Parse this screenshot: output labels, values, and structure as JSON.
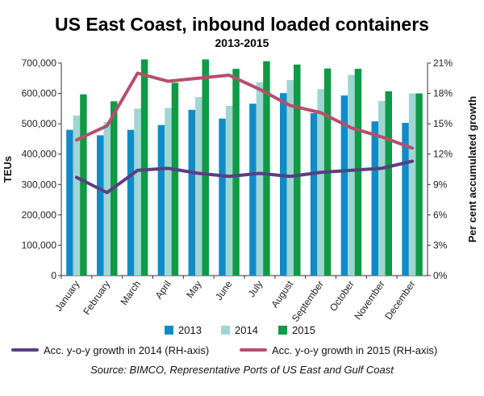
{
  "title": "US East Coast, inbound loaded containers",
  "subtitle": "2013-2015",
  "source": "Source: BIMCO, Representative Ports of US East and Gulf Coast",
  "colors": {
    "s2013": "#0f8cc8",
    "s2014": "#9fd6d3",
    "s2015": "#0f9a46",
    "g2014": "#5a3e82",
    "g2015": "#b74e6b"
  },
  "chart_data": {
    "type": "bar",
    "title": "US East Coast, inbound loaded containers",
    "subtitle": "2013-2015",
    "categories": [
      "January",
      "February",
      "March",
      "April",
      "May",
      "June",
      "July",
      "August",
      "September",
      "October",
      "November",
      "December"
    ],
    "series": [
      {
        "name": "2013",
        "values": [
          480000,
          462000,
          480000,
          496000,
          546000,
          517000,
          566000,
          601000,
          535000,
          593000,
          508000,
          503000
        ]
      },
      {
        "name": "2014",
        "values": [
          527000,
          506000,
          550000,
          552000,
          588000,
          559000,
          637000,
          644000,
          614000,
          661000,
          575000,
          600000
        ]
      },
      {
        "name": "2015",
        "values": [
          597000,
          574000,
          712000,
          635000,
          712000,
          681000,
          706000,
          695000,
          682000,
          681000,
          607000,
          600000
        ]
      }
    ],
    "lines": [
      {
        "name": "Acc. y-o-y growth in 2014 (RH-axis)",
        "values": [
          9.7,
          8.2,
          10.4,
          10.6,
          10.1,
          9.8,
          10.1,
          9.8,
          10.2,
          10.4,
          10.6,
          11.3
        ]
      },
      {
        "name": "Acc. y-o-y growth in 2015 (RH-axis)",
        "values": [
          13.4,
          14.8,
          20.0,
          19.2,
          19.5,
          19.8,
          18.4,
          16.8,
          16.1,
          14.6,
          13.7,
          12.6
        ]
      }
    ],
    "ylabel": "TEUs",
    "y2label": "Per cent accumulated growth",
    "ylim": [
      0,
      700000
    ],
    "y2lim": [
      0,
      21
    ],
    "yticks": [
      "0",
      "100,000",
      "200,000",
      "300,000",
      "400,000",
      "500,000",
      "600,000",
      "700,000"
    ],
    "y2ticks": [
      "0%",
      "3%",
      "6%",
      "9%",
      "12%",
      "15%",
      "18%",
      "21%"
    ],
    "legend_position": "bottom",
    "grid": false
  }
}
